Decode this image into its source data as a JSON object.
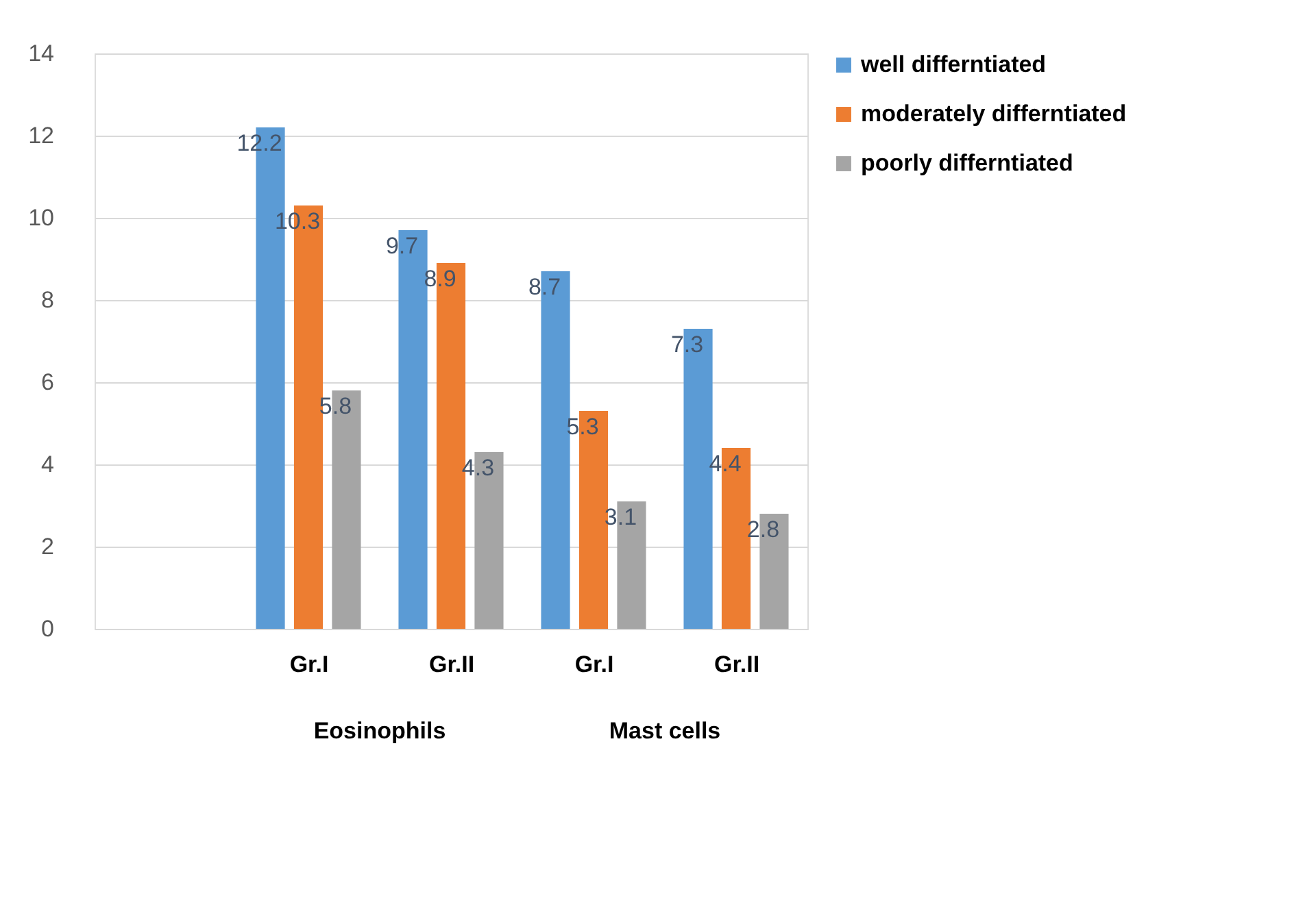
{
  "chart_data": {
    "type": "bar",
    "categories": [
      null,
      "Gr.I",
      "Gr.II",
      "Gr.I",
      "Gr.II"
    ],
    "annotations": [
      "Eosinophils",
      "Mast cells"
    ],
    "series": [
      {
        "name": "well differntiated",
        "color": "#5b9bd5",
        "values": [
          null,
          12.2,
          9.7,
          8.7,
          7.3
        ]
      },
      {
        "name": "moderately differntiated",
        "color": "#ed7d31",
        "values": [
          null,
          10.3,
          8.9,
          5.3,
          4.4
        ]
      },
      {
        "name": "poorly differntiated",
        "color": "#a5a5a5",
        "values": [
          null,
          5.8,
          4.3,
          3.1,
          2.8
        ]
      }
    ],
    "ylim": [
      0,
      14
    ],
    "yticks": [
      0,
      2,
      4,
      6,
      8,
      10,
      12,
      14
    ],
    "grid": "y",
    "legend": "right",
    "data_labels": true
  }
}
